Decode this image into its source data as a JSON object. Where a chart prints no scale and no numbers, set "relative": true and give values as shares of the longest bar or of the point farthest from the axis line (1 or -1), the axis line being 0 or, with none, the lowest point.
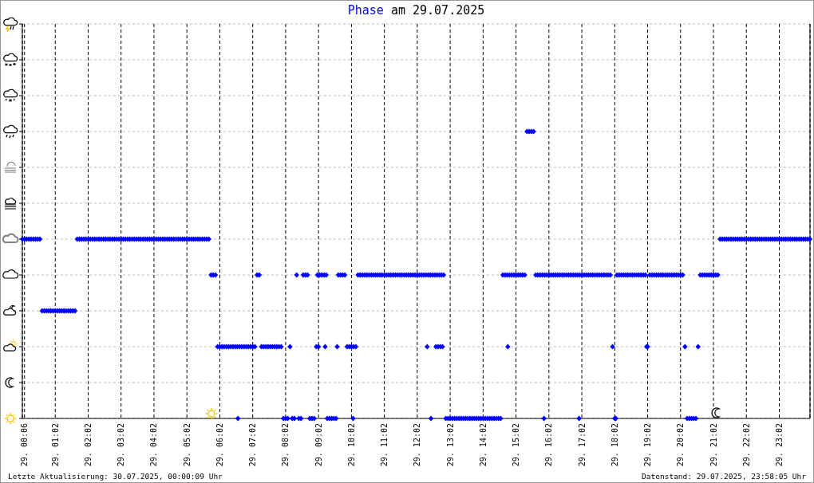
{
  "chart_data": {
    "type": "scatter",
    "title": "am 29.07.2025",
    "annotations": [
      "Letzte Aktualisierung: 30.07.2025, 00:00:09 Uhr",
      "Datenstand: 29.07.2025, 23:58:05 Uhr"
    ],
    "relative": true,
    "xlim": [
      "2025-07-29T00:02",
      "2025-07-29T23:58"
    ],
    "xticks": [
      {
        "value": "2025-07-29T00:06",
        "label": "29. 00:06"
      },
      {
        "value": "2025-07-29T01:02",
        "label": "29. 01:02"
      },
      {
        "value": "2025-07-29T02:02",
        "label": "29. 02:02"
      },
      {
        "value": "2025-07-29T03:02",
        "label": "29. 03:02"
      },
      {
        "value": "2025-07-29T04:02",
        "label": "29. 04:02"
      },
      {
        "value": "2025-07-29T05:02",
        "label": "29. 05:02"
      },
      {
        "value": "2025-07-29T06:02",
        "label": "29. 06:02"
      },
      {
        "value": "2025-07-29T07:02",
        "label": "29. 07:02"
      },
      {
        "value": "2025-07-29T08:02",
        "label": "29. 08:02"
      },
      {
        "value": "2025-07-29T09:02",
        "label": "29. 09:02"
      },
      {
        "value": "2025-07-29T10:02",
        "label": "29. 10:02"
      },
      {
        "value": "2025-07-29T11:02",
        "label": "29. 11:02"
      },
      {
        "value": "2025-07-29T12:02",
        "label": "29. 12:02"
      },
      {
        "value": "2025-07-29T13:02",
        "label": "29. 13:02"
      },
      {
        "value": "2025-07-29T14:02",
        "label": "29. 14:02"
      },
      {
        "value": "2025-07-29T15:02",
        "label": "29. 15:02"
      },
      {
        "value": "2025-07-29T16:02",
        "label": "29. 16:02"
      },
      {
        "value": "2025-07-29T17:02",
        "label": "29. 17:02"
      },
      {
        "value": "2025-07-29T18:02",
        "label": "29. 18:02"
      },
      {
        "value": "2025-07-29T19:02",
        "label": "29. 19:02"
      },
      {
        "value": "2025-07-29T20:02",
        "label": "29. 20:02"
      },
      {
        "value": "2025-07-29T21:02",
        "label": "29. 21:02"
      },
      {
        "value": "2025-07-29T22:02",
        "label": "29. 22:02"
      },
      {
        "value": "2025-07-29T23:02",
        "label": "29. 23:02"
      }
    ],
    "tick_labels": "x",
    "grid": true,
    "marker": "diamond",
    "x": [
      "2025-07-29T00:02",
      "2025-07-29T00:06",
      "2025-07-29T00:10",
      "2025-07-29T00:14",
      "2025-07-29T00:18",
      "2025-07-29T00:22",
      "2025-07-29T00:26",
      "2025-07-29T00:30",
      "2025-07-29T00:34",
      "2025-07-29T00:38",
      "2025-07-29T00:42",
      "2025-07-29T00:46",
      "2025-07-29T00:50",
      "2025-07-29T00:54",
      "2025-07-29T00:58",
      "2025-07-29T01:02",
      "2025-07-29T01:06",
      "2025-07-29T01:10",
      "2025-07-29T01:14",
      "2025-07-29T01:18",
      "2025-07-29T01:22",
      "2025-07-29T01:26",
      "2025-07-29T01:30",
      "2025-07-29T01:34",
      "2025-07-29T01:38",
      "2025-07-29T01:42",
      "2025-07-29T01:46",
      "2025-07-29T01:50",
      "2025-07-29T01:54",
      "2025-07-29T01:58",
      "2025-07-29T02:02",
      "2025-07-29T02:06",
      "2025-07-29T02:10",
      "2025-07-29T02:14",
      "2025-07-29T02:18",
      "2025-07-29T02:22",
      "2025-07-29T02:26",
      "2025-07-29T02:30",
      "2025-07-29T02:34",
      "2025-07-29T02:38",
      "2025-07-29T02:42",
      "2025-07-29T02:46",
      "2025-07-29T02:50",
      "2025-07-29T02:54",
      "2025-07-29T02:58",
      "2025-07-29T03:02",
      "2025-07-29T03:06",
      "2025-07-29T03:10",
      "2025-07-29T03:14",
      "2025-07-29T03:18",
      "2025-07-29T03:22",
      "2025-07-29T03:26",
      "2025-07-29T03:30",
      "2025-07-29T03:34",
      "2025-07-29T03:38",
      "2025-07-29T03:42",
      "2025-07-29T03:46",
      "2025-07-29T03:50",
      "2025-07-29T03:54",
      "2025-07-29T03:58",
      "2025-07-29T04:02",
      "2025-07-29T04:06",
      "2025-07-29T04:10",
      "2025-07-29T04:14",
      "2025-07-29T04:18",
      "2025-07-29T04:22",
      "2025-07-29T04:26",
      "2025-07-29T04:30",
      "2025-07-29T04:34",
      "2025-07-29T04:38",
      "2025-07-29T04:42",
      "2025-07-29T04:46",
      "2025-07-29T04:50",
      "2025-07-29T04:54",
      "2025-07-29T04:58",
      "2025-07-29T05:02",
      "2025-07-29T05:06",
      "2025-07-29T05:10",
      "2025-07-29T05:14",
      "2025-07-29T05:18",
      "2025-07-29T05:22",
      "2025-07-29T05:26",
      "2025-07-29T05:30",
      "2025-07-29T05:34",
      "2025-07-29T05:38",
      "2025-07-29T05:42",
      "2025-07-29T05:46",
      "2025-07-29T05:50",
      "2025-07-29T05:54",
      "2025-07-29T05:58",
      "2025-07-29T06:02",
      "2025-07-29T06:06",
      "2025-07-29T06:10",
      "2025-07-29T06:14",
      "2025-07-29T06:18",
      "2025-07-29T06:22",
      "2025-07-29T06:26",
      "2025-07-29T06:30",
      "2025-07-29T06:34",
      "2025-07-29T06:35",
      "2025-07-29T06:38",
      "2025-07-29T06:42",
      "2025-07-29T06:46",
      "2025-07-29T06:50",
      "2025-07-29T06:54",
      "2025-07-29T06:58",
      "2025-07-29T07:02",
      "2025-07-29T07:06",
      "2025-07-29T07:10",
      "2025-07-29T07:14",
      "2025-07-29T07:18",
      "2025-07-29T07:22",
      "2025-07-29T07:26",
      "2025-07-29T07:30",
      "2025-07-29T07:34",
      "2025-07-29T07:38",
      "2025-07-29T07:42",
      "2025-07-29T07:46",
      "2025-07-29T07:50",
      "2025-07-29T07:54",
      "2025-07-29T07:58",
      "2025-07-29T08:02",
      "2025-07-29T08:06",
      "2025-07-29T08:10",
      "2025-07-29T08:14",
      "2025-07-29T08:18",
      "2025-07-29T08:22",
      "2025-07-29T08:26",
      "2025-07-29T08:30",
      "2025-07-29T08:34",
      "2025-07-29T08:38",
      "2025-07-29T08:42",
      "2025-07-29T08:46",
      "2025-07-29T08:50",
      "2025-07-29T08:54",
      "2025-07-29T08:58",
      "2025-07-29T09:00",
      "2025-07-29T09:02",
      "2025-07-29T09:04",
      "2025-07-29T09:08",
      "2025-07-29T09:12",
      "2025-07-29T09:14",
      "2025-07-29T09:16",
      "2025-07-29T09:18",
      "2025-07-29T09:22",
      "2025-07-29T09:26",
      "2025-07-29T09:30",
      "2025-07-29T09:34",
      "2025-07-29T09:36",
      "2025-07-29T09:38",
      "2025-07-29T09:42",
      "2025-07-29T09:46",
      "2025-07-29T09:50",
      "2025-07-29T09:54",
      "2025-07-29T09:58",
      "2025-07-29T10:02",
      "2025-07-29T10:05",
      "2025-07-29T10:06",
      "2025-07-29T10:10",
      "2025-07-29T10:14",
      "2025-07-29T10:18",
      "2025-07-29T10:22",
      "2025-07-29T10:26",
      "2025-07-29T10:30",
      "2025-07-29T10:34",
      "2025-07-29T10:38",
      "2025-07-29T10:42",
      "2025-07-29T10:46",
      "2025-07-29T10:50",
      "2025-07-29T10:54",
      "2025-07-29T10:58",
      "2025-07-29T11:02",
      "2025-07-29T11:06",
      "2025-07-29T11:10",
      "2025-07-29T11:14",
      "2025-07-29T11:18",
      "2025-07-29T11:22",
      "2025-07-29T11:26",
      "2025-07-29T11:30",
      "2025-07-29T11:34",
      "2025-07-29T11:38",
      "2025-07-29T11:42",
      "2025-07-29T11:46",
      "2025-07-29T11:50",
      "2025-07-29T11:54",
      "2025-07-29T11:58",
      "2025-07-29T12:02",
      "2025-07-29T12:06",
      "2025-07-29T12:10",
      "2025-07-29T12:14",
      "2025-07-29T12:18",
      "2025-07-29T12:20",
      "2025-07-29T12:22",
      "2025-07-29T12:26",
      "2025-07-29T12:27",
      "2025-07-29T12:30",
      "2025-07-29T12:34",
      "2025-07-29T12:36",
      "2025-07-29T12:38",
      "2025-07-29T12:40",
      "2025-07-29T12:42",
      "2025-07-29T12:44",
      "2025-07-29T12:46",
      "2025-07-29T12:48",
      "2025-07-29T12:50",
      "2025-07-29T12:54",
      "2025-07-29T12:58",
      "2025-07-29T13:02",
      "2025-07-29T13:06",
      "2025-07-29T13:10",
      "2025-07-29T13:14",
      "2025-07-29T13:18",
      "2025-07-29T13:22",
      "2025-07-29T13:26",
      "2025-07-29T13:30",
      "2025-07-29T13:34",
      "2025-07-29T13:38",
      "2025-07-29T13:42",
      "2025-07-29T13:46",
      "2025-07-29T13:50",
      "2025-07-29T13:54",
      "2025-07-29T13:58",
      "2025-07-29T14:02",
      "2025-07-29T14:06",
      "2025-07-29T14:10",
      "2025-07-29T14:14",
      "2025-07-29T14:18",
      "2025-07-29T14:22",
      "2025-07-29T14:26",
      "2025-07-29T14:30",
      "2025-07-29T14:34",
      "2025-07-29T14:38",
      "2025-07-29T14:42",
      "2025-07-29T14:46",
      "2025-07-29T14:47",
      "2025-07-29T14:50",
      "2025-07-29T14:54",
      "2025-07-29T14:58",
      "2025-07-29T15:02",
      "2025-07-29T15:06",
      "2025-07-29T15:10",
      "2025-07-29T15:14",
      "2025-07-29T15:18",
      "2025-07-29T15:22",
      "2025-07-29T15:26",
      "2025-07-29T15:30",
      "2025-07-29T15:34",
      "2025-07-29T15:38",
      "2025-07-29T15:42",
      "2025-07-29T15:46",
      "2025-07-29T15:50",
      "2025-07-29T15:53",
      "2025-07-29T15:54",
      "2025-07-29T15:58",
      "2025-07-29T16:02",
      "2025-07-29T16:06",
      "2025-07-29T16:10",
      "2025-07-29T16:14",
      "2025-07-29T16:18",
      "2025-07-29T16:22",
      "2025-07-29T16:26",
      "2025-07-29T16:30",
      "2025-07-29T16:34",
      "2025-07-29T16:38",
      "2025-07-29T16:42",
      "2025-07-29T16:46",
      "2025-07-29T16:50",
      "2025-07-29T16:54",
      "2025-07-29T16:57",
      "2025-07-29T16:58",
      "2025-07-29T17:02",
      "2025-07-29T17:06",
      "2025-07-29T17:10",
      "2025-07-29T17:14",
      "2025-07-29T17:18",
      "2025-07-29T17:22",
      "2025-07-29T17:26",
      "2025-07-29T17:30",
      "2025-07-29T17:34",
      "2025-07-29T17:38",
      "2025-07-29T17:42",
      "2025-07-29T17:46",
      "2025-07-29T17:50",
      "2025-07-29T17:54",
      "2025-07-29T17:58",
      "2025-07-29T18:02",
      "2025-07-29T18:04",
      "2025-07-29T18:06",
      "2025-07-29T18:10",
      "2025-07-29T18:14",
      "2025-07-29T18:18",
      "2025-07-29T18:22",
      "2025-07-29T18:26",
      "2025-07-29T18:30",
      "2025-07-29T18:34",
      "2025-07-29T18:38",
      "2025-07-29T18:42",
      "2025-07-29T18:46",
      "2025-07-29T18:50",
      "2025-07-29T18:54",
      "2025-07-29T18:58",
      "2025-07-29T19:00",
      "2025-07-29T19:02",
      "2025-07-29T19:06",
      "2025-07-29T19:10",
      "2025-07-29T19:14",
      "2025-07-29T19:18",
      "2025-07-29T19:22",
      "2025-07-29T19:26",
      "2025-07-29T19:30",
      "2025-07-29T19:34",
      "2025-07-29T19:38",
      "2025-07-29T19:42",
      "2025-07-29T19:46",
      "2025-07-29T19:50",
      "2025-07-29T19:54",
      "2025-07-29T19:58",
      "2025-07-29T20:02",
      "2025-07-29T20:06",
      "2025-07-29T20:10",
      "2025-07-29T20:14",
      "2025-07-29T20:18",
      "2025-07-29T20:22",
      "2025-07-29T20:26",
      "2025-07-29T20:30",
      "2025-07-29T20:34",
      "2025-07-29T20:38",
      "2025-07-29T20:42",
      "2025-07-29T20:46",
      "2025-07-29T20:50",
      "2025-07-29T20:54",
      "2025-07-29T20:58",
      "2025-07-29T21:02",
      "2025-07-29T21:06",
      "2025-07-29T21:10",
      "2025-07-29T21:14",
      "2025-07-29T21:18",
      "2025-07-29T21:22",
      "2025-07-29T21:26",
      "2025-07-29T21:30",
      "2025-07-29T21:34",
      "2025-07-29T21:38",
      "2025-07-29T21:42",
      "2025-07-29T21:46",
      "2025-07-29T21:50",
      "2025-07-29T21:54",
      "2025-07-29T21:58",
      "2025-07-29T22:02",
      "2025-07-29T22:06",
      "2025-07-29T22:10",
      "2025-07-29T22:14",
      "2025-07-29T22:18",
      "2025-07-29T22:22",
      "2025-07-29T22:26",
      "2025-07-29T22:30",
      "2025-07-29T22:34",
      "2025-07-29T22:38",
      "2025-07-29T22:42",
      "2025-07-29T22:46",
      "2025-07-29T22:50",
      "2025-07-29T22:54",
      "2025-07-29T22:58",
      "2025-07-29T23:02",
      "2025-07-29T23:06",
      "2025-07-29T23:10",
      "2025-07-29T23:14",
      "2025-07-29T23:18",
      "2025-07-29T23:22",
      "2025-07-29T23:26",
      "2025-07-29T23:30",
      "2025-07-29T23:34",
      "2025-07-29T23:38",
      "2025-07-29T23:42",
      "2025-07-29T23:46",
      "2025-07-29T23:50",
      "2025-07-29T23:54",
      "2025-07-29T23:58"
    ],
    "series": [
      {
        "name": "Phase",
        "color": "#0000ff",
        "values": [
          0.625,
          0.625,
          0.625,
          0.625,
          0.625,
          0.625,
          0.625,
          0.625,
          0.625,
          0.375,
          0.375,
          0.375,
          0.375,
          0.375,
          0.375,
          0.375,
          0.375,
          0.375,
          0.375,
          0.375,
          0.375,
          0.375,
          0.375,
          0.375,
          0.375,
          0.625,
          0.625,
          0.625,
          0.625,
          0.625,
          0.625,
          0.625,
          0.625,
          0.625,
          0.625,
          0.625,
          0.625,
          0.625,
          0.625,
          0.625,
          0.625,
          0.625,
          0.625,
          0.625,
          0.625,
          0.625,
          0.625,
          0.625,
          0.625,
          0.625,
          0.625,
          0.625,
          0.625,
          0.625,
          0.625,
          0.625,
          0.625,
          0.625,
          0.625,
          0.625,
          0.625,
          0.625,
          0.625,
          0.625,
          0.625,
          0.625,
          0.625,
          0.625,
          0.625,
          0.625,
          0.625,
          0.625,
          0.625,
          0.625,
          0.625,
          0.625,
          0.625,
          0.625,
          0.625,
          0.625,
          0.625,
          0.625,
          0.625,
          0.625,
          0.625,
          0.625,
          0.5,
          0.5,
          0.5,
          0.25,
          0.25,
          0.25,
          0.25,
          0.25,
          0.25,
          0.25,
          0.25,
          0.25,
          0.25,
          0,
          0.25,
          0.25,
          0.25,
          0.25,
          0.25,
          0.25,
          0.25,
          0.25,
          0.5,
          0.5,
          0.25,
          0.25,
          0.25,
          0.25,
          0.25,
          0.25,
          0.25,
          0.25,
          0.25,
          0.25,
          0,
          0,
          0,
          0.25,
          0,
          0,
          0.5,
          0,
          0,
          0.5,
          0.5,
          0.5,
          0,
          0,
          0,
          0.25,
          0.5,
          0.25,
          0.5,
          0.5,
          0.5,
          0.25,
          0.5,
          0,
          0,
          0,
          0,
          0,
          0.25,
          0.5,
          0.5,
          0.5,
          0.5,
          0.25,
          0.25,
          0.25,
          0,
          0.25,
          0.25,
          0.5,
          0.5,
          0.5,
          0.5,
          0.5,
          0.5,
          0.5,
          0.5,
          0.5,
          0.5,
          0.5,
          0.5,
          0.5,
          0.5,
          0.5,
          0.5,
          0.5,
          0.5,
          0.5,
          0.5,
          0.5,
          0.5,
          0.5,
          0.5,
          0.5,
          0.5,
          0.5,
          0.5,
          0.5,
          0.5,
          0.5,
          0.5,
          0.25,
          0.5,
          0.5,
          0,
          0.5,
          0.5,
          0.25,
          0.5,
          0.25,
          0.5,
          0.25,
          0.5,
          0.25,
          0.5,
          0,
          0,
          0,
          0,
          0,
          0,
          0,
          0,
          0,
          0,
          0,
          0,
          0,
          0,
          0,
          0,
          0,
          0,
          0,
          0,
          0,
          0,
          0,
          0,
          0,
          0,
          0.5,
          0.5,
          0.5,
          0.25,
          0.5,
          0.5,
          0.5,
          0.5,
          0.5,
          0.5,
          0.5,
          0.5,
          1,
          1,
          1,
          1,
          0.5,
          0.5,
          0.5,
          0.5,
          0,
          0.5,
          0.5,
          0.5,
          0.5,
          0.5,
          0.5,
          0.5,
          0.5,
          0.5,
          0.5,
          0.5,
          0.5,
          0.5,
          0.5,
          0.5,
          0.5,
          0,
          0.5,
          0.5,
          0.5,
          0.5,
          0.5,
          0.5,
          0.5,
          0.5,
          0.5,
          0.5,
          0.5,
          0.5,
          0.5,
          0.5,
          0.5,
          0.25,
          0,
          0,
          0.5,
          0.5,
          0.5,
          0.5,
          0.5,
          0.5,
          0.5,
          0.5,
          0.5,
          0.5,
          0.5,
          0.5,
          0.5,
          0.5,
          0.25,
          0.25,
          0.5,
          0.5,
          0.5,
          0.5,
          0.5,
          0.5,
          0.5,
          0.5,
          0.5,
          0.5,
          0.5,
          0.5,
          0.5,
          0.5,
          0.5,
          0.5,
          0.25,
          0,
          0,
          0,
          0,
          0,
          0.25,
          0.5,
          0.5,
          0.5,
          0.5,
          0.5,
          0.5,
          0.5,
          0.5,
          0.5,
          0.625,
          0.625,
          0.625,
          0.625,
          0.625,
          0.625,
          0.625,
          0.625,
          0.625,
          0.625,
          0.625,
          0.625,
          0.625,
          0.625,
          0.625,
          0.625,
          0.625,
          0.625,
          0.625,
          0.625,
          0.625,
          0.625,
          0.625,
          0.625,
          0.625,
          0.625,
          0.625,
          0.625,
          0.625,
          0.625,
          0.625,
          0.625,
          0.625,
          0.625,
          0.625,
          0.625,
          0.625,
          0.625,
          0.625,
          0.625,
          0.625,
          0.625
        ]
      }
    ]
  }
}
